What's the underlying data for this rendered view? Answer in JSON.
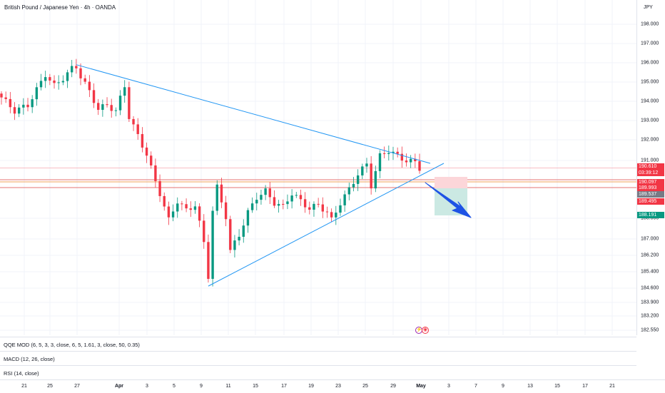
{
  "symbol": {
    "title": "British Pound / Japanese Yen · 4h · OANDA",
    "currency": "JPY"
  },
  "price_axis": {
    "ticks": [
      "198.000",
      "197.000",
      "196.000",
      "195.000",
      "194.000",
      "193.000",
      "192.000",
      "191.000",
      "188.000",
      "187.000",
      "186.200",
      "185.400",
      "184.600",
      "183.900",
      "183.200",
      "182.550"
    ]
  },
  "price_tags": [
    {
      "label": "190.610",
      "color": "#f23645"
    },
    {
      "label": "03:39:12",
      "color": "#f23645"
    },
    {
      "label": "190.097",
      "color": "#f23645"
    },
    {
      "label": "189.993",
      "color": "#f23645"
    },
    {
      "label": "189.537",
      "color": "#787b86"
    },
    {
      "label": "189.495",
      "color": "#f23645"
    },
    {
      "label": "188.191",
      "color": "#089981"
    }
  ],
  "indicators": {
    "qqe": "QQE MOD (6, 5, 3, 3, close, 6, 5, 1.61, 3, close, 50, 0.35)",
    "macd": "MACD (12, 26, close)",
    "rsi": "RSI (14, close)"
  },
  "time_axis": {
    "ticks": [
      {
        "label": "21",
        "bold": false
      },
      {
        "label": "25",
        "bold": false
      },
      {
        "label": "27",
        "bold": false
      },
      {
        "label": "Apr",
        "bold": true
      },
      {
        "label": "3",
        "bold": false
      },
      {
        "label": "5",
        "bold": false
      },
      {
        "label": "9",
        "bold": false
      },
      {
        "label": "11",
        "bold": false
      },
      {
        "label": "15",
        "bold": false
      },
      {
        "label": "17",
        "bold": false
      },
      {
        "label": "19",
        "bold": false
      },
      {
        "label": "23",
        "bold": false
      },
      {
        "label": "25",
        "bold": false
      },
      {
        "label": "29",
        "bold": false
      },
      {
        "label": "May",
        "bold": true
      },
      {
        "label": "3",
        "bold": false
      },
      {
        "label": "7",
        "bold": false
      },
      {
        "label": "9",
        "bold": false
      },
      {
        "label": "13",
        "bold": false
      },
      {
        "label": "15",
        "bold": false
      },
      {
        "label": "17",
        "bold": false
      },
      {
        "label": "21",
        "bold": false
      }
    ]
  },
  "colors": {
    "up": "#089981",
    "down": "#f23645",
    "trendline": "#2196f3",
    "arrow": "#1e53e5",
    "stop_zone": "#fcd6d9",
    "target_zone": "#cbe9e3",
    "grid": "#f0f3fa"
  },
  "chart_data": {
    "type": "candlestick",
    "symbol": "British Pound / Japanese Yen",
    "interval": "4h",
    "source": "OANDA",
    "y_unit": "JPY",
    "ylim": [
      182.55,
      198.3
    ],
    "current_price": 190.61,
    "key_levels": [
      190.097,
      189.993,
      189.537,
      189.495,
      188.191
    ],
    "close_path": [
      [
        0,
        194.2
      ],
      [
        3,
        193.5
      ],
      [
        6,
        193.8
      ],
      [
        8,
        194.6
      ],
      [
        10,
        195.4
      ],
      [
        12,
        194.8
      ],
      [
        14,
        195.2
      ],
      [
        16,
        195.7
      ],
      [
        17,
        195.8
      ],
      [
        18,
        195.3
      ],
      [
        20,
        194.5
      ],
      [
        22,
        193.6
      ],
      [
        24,
        193.8
      ],
      [
        26,
        193.5
      ],
      [
        28,
        194.8
      ],
      [
        29,
        193.2
      ],
      [
        31,
        192.2
      ],
      [
        33,
        191.3
      ],
      [
        35,
        189.9
      ],
      [
        36,
        189.3
      ],
      [
        38,
        187.9
      ],
      [
        40,
        188.9
      ],
      [
        42,
        188.4
      ],
      [
        44,
        188.7
      ],
      [
        46,
        186.8
      ],
      [
        47,
        185.2
      ],
      [
        48,
        188.4
      ],
      [
        49,
        189.6
      ],
      [
        51,
        188.1
      ],
      [
        52,
        186.4
      ],
      [
        54,
        187.2
      ],
      [
        56,
        188.3
      ],
      [
        58,
        189.1
      ],
      [
        60,
        189.4
      ],
      [
        62,
        188.8
      ],
      [
        64,
        188.6
      ],
      [
        66,
        189.3
      ],
      [
        68,
        188.9
      ],
      [
        70,
        188.5
      ],
      [
        72,
        188.7
      ],
      [
        74,
        188.3
      ],
      [
        75,
        187.9
      ],
      [
        77,
        188.8
      ],
      [
        79,
        189.5
      ],
      [
        81,
        190.3
      ],
      [
        83,
        190.8
      ],
      [
        84,
        189.7
      ],
      [
        86,
        191.2
      ],
      [
        88,
        191.5
      ],
      [
        90,
        191.2
      ],
      [
        92,
        191.0
      ],
      [
        94,
        190.9
      ],
      [
        95,
        190.61
      ]
    ]
  }
}
